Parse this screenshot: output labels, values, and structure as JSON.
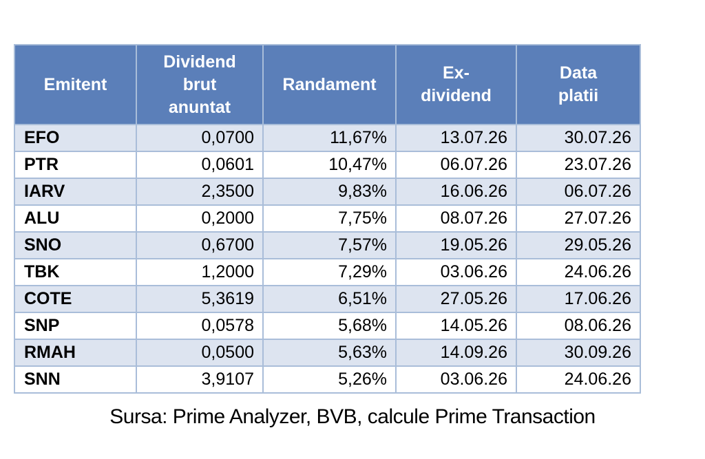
{
  "chart_data": {
    "type": "table",
    "columns": [
      "Emitent",
      "Dividend brut anuntat",
      "Randament",
      "Ex-dividend",
      "Data platii"
    ],
    "rows": [
      [
        "EFO",
        "0,0700",
        "11,67%",
        "13.07.26",
        "30.07.26"
      ],
      [
        "PTR",
        "0,0601",
        "10,47%",
        "06.07.26",
        "23.07.26"
      ],
      [
        "IARV",
        "2,3500",
        "9,83%",
        "16.06.26",
        "06.07.26"
      ],
      [
        "ALU",
        "0,2000",
        "7,75%",
        "08.07.26",
        "27.07.26"
      ],
      [
        "SNO",
        "0,6700",
        "7,57%",
        "19.05.26",
        "29.05.26"
      ],
      [
        "TBK",
        "1,2000",
        "7,29%",
        "03.06.26",
        "24.06.26"
      ],
      [
        "COTE",
        "5,3619",
        "6,51%",
        "27.05.26",
        "17.06.26"
      ],
      [
        "SNP",
        "0,0578",
        "5,68%",
        "14.05.26",
        "08.06.26"
      ],
      [
        "RMAH",
        "0,0500",
        "5,63%",
        "14.09.26",
        "30.09.26"
      ],
      [
        "SNN",
        "3,9107",
        "5,26%",
        "03.06.26",
        "24.06.26"
      ]
    ],
    "source": "Sursa: Prime Analyzer, BVB, calcule Prime Transaction",
    "layout_hints": {
      "banded_rows": "odd rows shaded (EFO, IARV, SNO, COTE, RMAH)",
      "first_column_align": "left-bold",
      "data_columns_align": "right"
    }
  },
  "table": {
    "header_display": {
      "emitent": "Emitent",
      "dividend": "Dividend\nbrut\nanuntat",
      "randament": "Randament",
      "ex_dividend": "Ex-\ndividend",
      "data_platii": "Data\nplatii"
    }
  },
  "footer": {
    "source_note": "Sursa: Prime Analyzer, BVB, calcule Prime Transaction"
  },
  "colors": {
    "header_bg": "#5b7fb9",
    "header_text": "#ffffff",
    "banded_row_bg": "#dde4f0",
    "row_bg": "#ffffff",
    "border": "#a9bdd9",
    "body_text": "#000000"
  }
}
